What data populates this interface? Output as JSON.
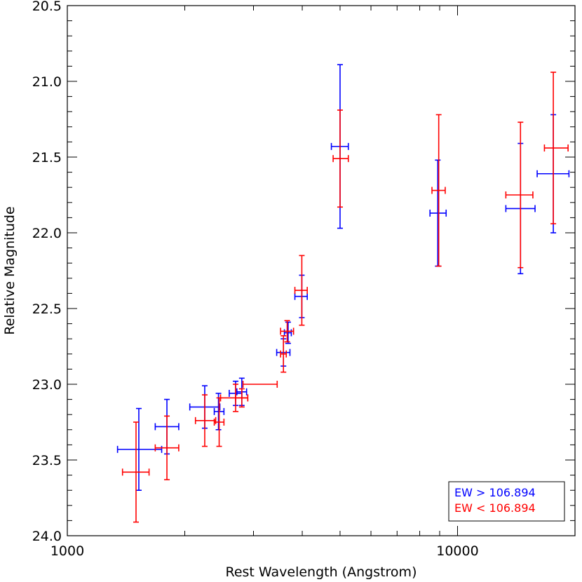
{
  "chart_data": {
    "type": "scatter",
    "title": "",
    "xlabel": "Rest Wavelength (Angstrom)",
    "ylabel": "Relative Magnitude",
    "xscale": "log",
    "xlim": [
      1000,
      20000
    ],
    "ylim": [
      24.0,
      20.5
    ],
    "y_inverted": true,
    "grid": false,
    "legend_position": "bottom-right",
    "x_ticks": [
      1000,
      10000
    ],
    "x_tick_labels": [
      "1000",
      "10000"
    ],
    "y_ticks": [
      20.5,
      21.0,
      21.5,
      22.0,
      22.5,
      23.0,
      23.5,
      24.0
    ],
    "y_tick_labels": [
      "20.5",
      "21.0",
      "21.5",
      "22.0",
      "22.5",
      "23.0",
      "23.5",
      "24.0"
    ],
    "series": [
      {
        "name": "EW > 106.894",
        "color": "#0000ff",
        "points": [
          {
            "x": 1525,
            "xlo": 1345,
            "xhi": 1745,
            "y": 23.43,
            "yerr": 0.27
          },
          {
            "x": 1800,
            "xlo": 1680,
            "xhi": 1930,
            "y": 23.28,
            "yerr": 0.18
          },
          {
            "x": 2250,
            "xlo": 2060,
            "xhi": 2460,
            "y": 23.15,
            "yerr": 0.14
          },
          {
            "x": 2440,
            "xlo": 2380,
            "xhi": 2520,
            "y": 23.18,
            "yerr": 0.12
          },
          {
            "x": 2700,
            "xlo": 2600,
            "xhi": 2800,
            "y": 23.06,
            "yerr": 0.08
          },
          {
            "x": 2800,
            "xlo": 2720,
            "xhi": 2880,
            "y": 23.05,
            "yerr": 0.09
          },
          {
            "x": 3580,
            "xlo": 3440,
            "xhi": 3720,
            "y": 22.79,
            "yerr": 0.09
          },
          {
            "x": 3680,
            "xlo": 3600,
            "xhi": 3750,
            "y": 22.66,
            "yerr": 0.07
          },
          {
            "x": 3990,
            "xlo": 3830,
            "xhi": 4120,
            "y": 22.42,
            "yerr": 0.14
          },
          {
            "x": 5000,
            "xlo": 4750,
            "xhi": 5250,
            "y": 21.43,
            "yerr": 0.54
          },
          {
            "x": 8900,
            "xlo": 8500,
            "xhi": 9350,
            "y": 21.87,
            "yerr": 0.35
          },
          {
            "x": 14500,
            "xlo": 13300,
            "xhi": 15800,
            "y": 21.84,
            "yerr": 0.43
          },
          {
            "x": 17600,
            "xlo": 16000,
            "xhi": 19300,
            "y": 21.61,
            "yerr": 0.39
          }
        ]
      },
      {
        "name": "EW < 106.894",
        "color": "#ff0000",
        "points": [
          {
            "x": 1500,
            "xlo": 1385,
            "xhi": 1620,
            "y": 23.58,
            "yerr": 0.33
          },
          {
            "x": 1800,
            "xlo": 1680,
            "xhi": 1930,
            "y": 23.42,
            "yerr": 0.21
          },
          {
            "x": 2250,
            "xlo": 2130,
            "xhi": 2400,
            "y": 23.24,
            "yerr": 0.17
          },
          {
            "x": 2450,
            "xlo": 2380,
            "xhi": 2520,
            "y": 23.25,
            "yerr": 0.16
          },
          {
            "x": 2700,
            "xlo": 2470,
            "xhi": 2900,
            "y": 23.09,
            "yerr": 0.09
          },
          {
            "x": 2800,
            "xlo": 2700,
            "xhi": 2900,
            "y": 23.09,
            "yerr": 0.06
          },
          {
            "x": 3000,
            "xlo": 2820,
            "xhi": 3450,
            "y": 23.0,
            "yerr": 0.0
          },
          {
            "x": 3580,
            "xlo": 3520,
            "xhi": 3640,
            "y": 22.8,
            "yerr": 0.12
          },
          {
            "x": 3660,
            "xlo": 3520,
            "xhi": 3800,
            "y": 22.65,
            "yerr": 0.07
          },
          {
            "x": 3990,
            "xlo": 3830,
            "xhi": 4120,
            "y": 22.38,
            "yerr": 0.23
          },
          {
            "x": 5000,
            "xlo": 4800,
            "xhi": 5250,
            "y": 21.51,
            "yerr": 0.32
          },
          {
            "x": 8950,
            "xlo": 8600,
            "xhi": 9300,
            "y": 21.72,
            "yerr": 0.5
          },
          {
            "x": 14500,
            "xlo": 13300,
            "xhi": 15600,
            "y": 21.75,
            "yerr": 0.48
          },
          {
            "x": 17600,
            "xlo": 16700,
            "xhi": 19200,
            "y": 21.44,
            "yerr": 0.5
          }
        ]
      }
    ]
  }
}
